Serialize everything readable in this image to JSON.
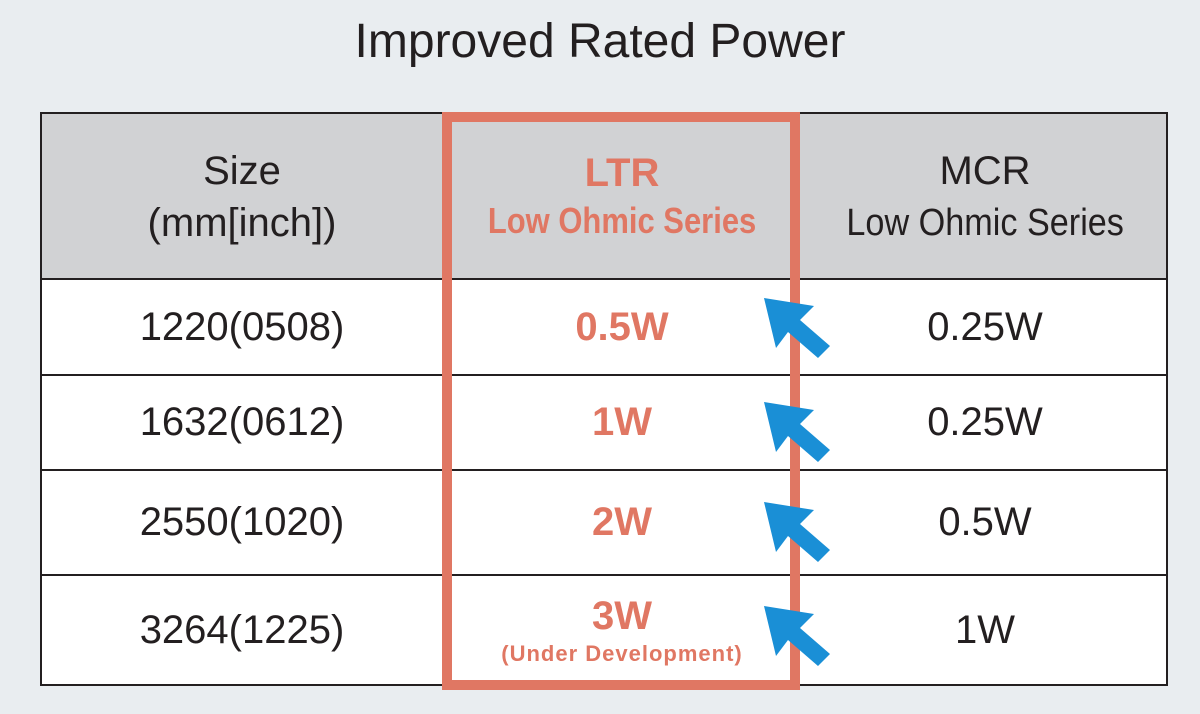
{
  "title": "Improved Rated Power",
  "headers": {
    "size": {
      "line1": "Size",
      "line2": "(mm[inch])"
    },
    "ltr": {
      "line1": "LTR",
      "line2": "Low Ohmic Series"
    },
    "mcr": {
      "line1": "MCR",
      "line2": "Low Ohmic Series"
    }
  },
  "rows": [
    {
      "size": "1220(0508)",
      "ltr": "0.5W",
      "ltr_note": "",
      "mcr": "0.25W"
    },
    {
      "size": "1632(0612)",
      "ltr": "1W",
      "ltr_note": "",
      "mcr": "0.25W"
    },
    {
      "size": "2550(1020)",
      "ltr": "2W",
      "ltr_note": "",
      "mcr": "0.5W"
    },
    {
      "size": "3264(1225)",
      "ltr": "3W",
      "ltr_note": "(Under Development)",
      "mcr": "1W"
    }
  ],
  "colors": {
    "highlight": "#e07763",
    "arrow": "#1a8fd6",
    "header_bg": "#d1d2d4",
    "page_bg": "#e9edf0"
  },
  "icons": {
    "arrow": "arrow-up-left-icon"
  }
}
